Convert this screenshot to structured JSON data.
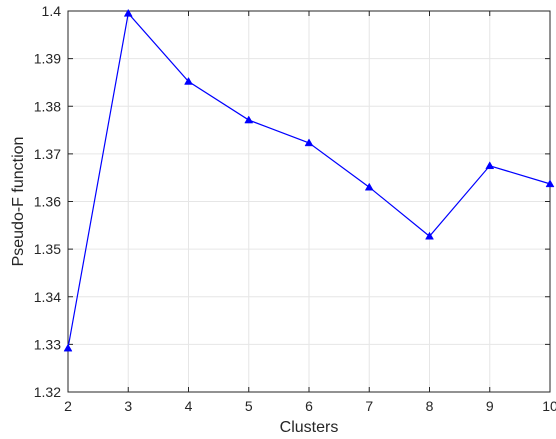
{
  "chart_data": {
    "type": "line",
    "xlabel": "Clusters",
    "ylabel": "Pseudo-F function",
    "xlim": [
      2,
      10
    ],
    "ylim": [
      1.32,
      1.4
    ],
    "x_ticks": [
      "2",
      "3",
      "4",
      "5",
      "6",
      "7",
      "8",
      "9",
      "10"
    ],
    "y_ticks": [
      "1.32",
      "1.33",
      "1.34",
      "1.35",
      "1.36",
      "1.37",
      "1.38",
      "1.39",
      "1.4"
    ],
    "grid": true,
    "series": [
      {
        "x": [
          2,
          3,
          4,
          5,
          6,
          7,
          8,
          9,
          10
        ],
        "values": [
          1.3292,
          1.3995,
          1.3852,
          1.3771,
          1.3723,
          1.363,
          1.3527,
          1.3675,
          1.3637
        ],
        "marker": "triangle-up",
        "color": "#0000ff"
      }
    ]
  }
}
